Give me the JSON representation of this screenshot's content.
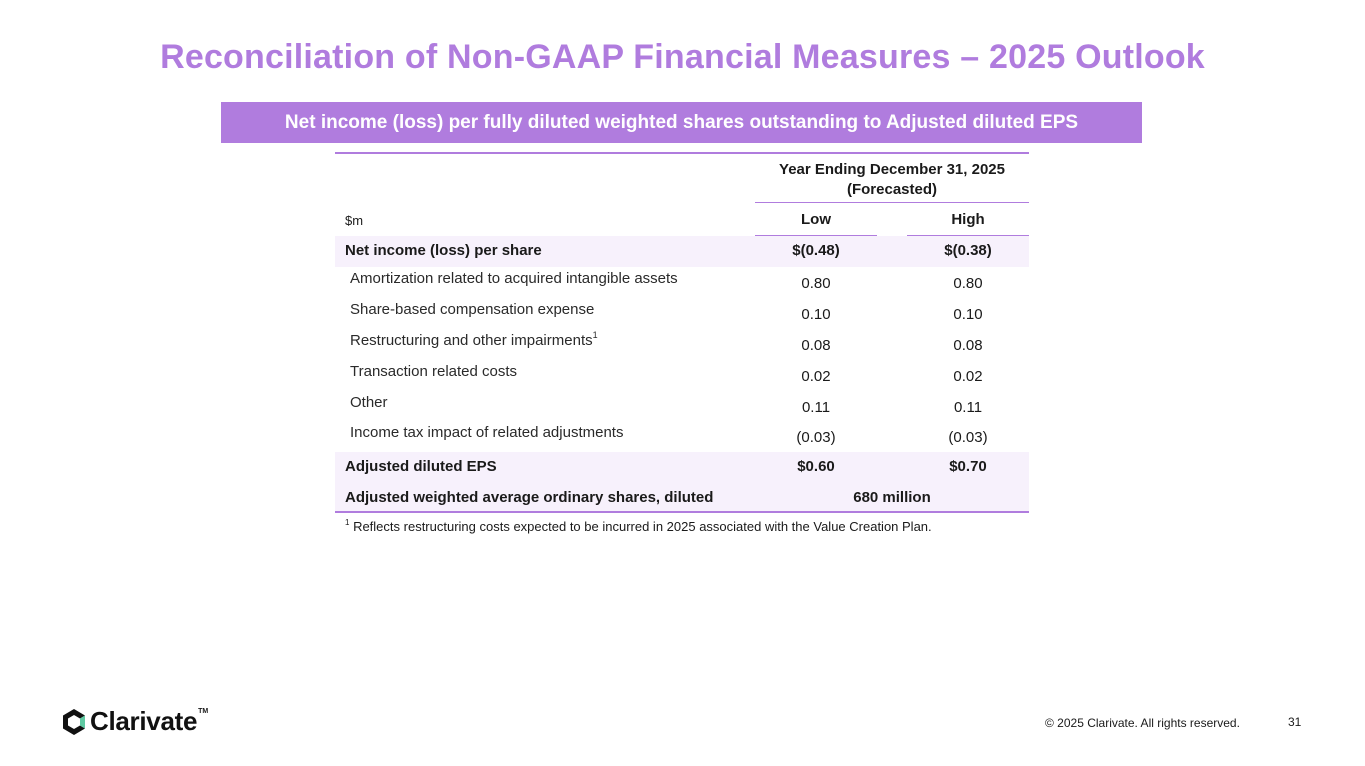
{
  "title": "Reconciliation of Non-GAAP Financial Measures – 2025 Outlook",
  "banner": "Net income (loss) per fully diluted weighted shares outstanding to Adjusted diluted EPS",
  "table": {
    "column_header_line1": "Year Ending December 31, 2025",
    "column_header_line2": "(Forecasted)",
    "units": "$m",
    "low_label": "Low",
    "high_label": "High",
    "rows": [
      {
        "label": "Net income (loss) per share",
        "low": "$(0.48)",
        "high": "$(0.38)",
        "style": "bold shaded"
      },
      {
        "label": "Amortization related to acquired intangible assets",
        "low": "0.80",
        "high": "0.80"
      },
      {
        "label": "Share-based compensation expense",
        "low": "0.10",
        "high": "0.10"
      },
      {
        "label": "Restructuring and other impairments",
        "footnote_ref": "1",
        "low": "0.08",
        "high": "0.08"
      },
      {
        "label": "Transaction related costs",
        "low": "0.02",
        "high": "0.02"
      },
      {
        "label": "Other",
        "low": "0.11",
        "high": "0.11"
      },
      {
        "label": "Income tax impact of related adjustments",
        "low": "(0.03)",
        "high": "(0.03)"
      },
      {
        "label": "Adjusted diluted EPS",
        "low": "$0.60",
        "high": "$0.70",
        "style": "bold shaded"
      }
    ],
    "shares_row": {
      "label": "Adjusted weighted average ordinary shares, diluted",
      "value": "680 million"
    }
  },
  "footnote": {
    "marker": "1",
    "text": " Reflects restructuring costs expected to be incurred in 2025 associated with the Value Creation Plan."
  },
  "footer": {
    "logo_text": "Clarivate",
    "logo_tm": "TM",
    "copyright": "© 2025 Clarivate. All rights reserved.",
    "page_number": "31"
  },
  "colors": {
    "accent": "#b07cde",
    "row_shade": "#f7f1fc"
  }
}
